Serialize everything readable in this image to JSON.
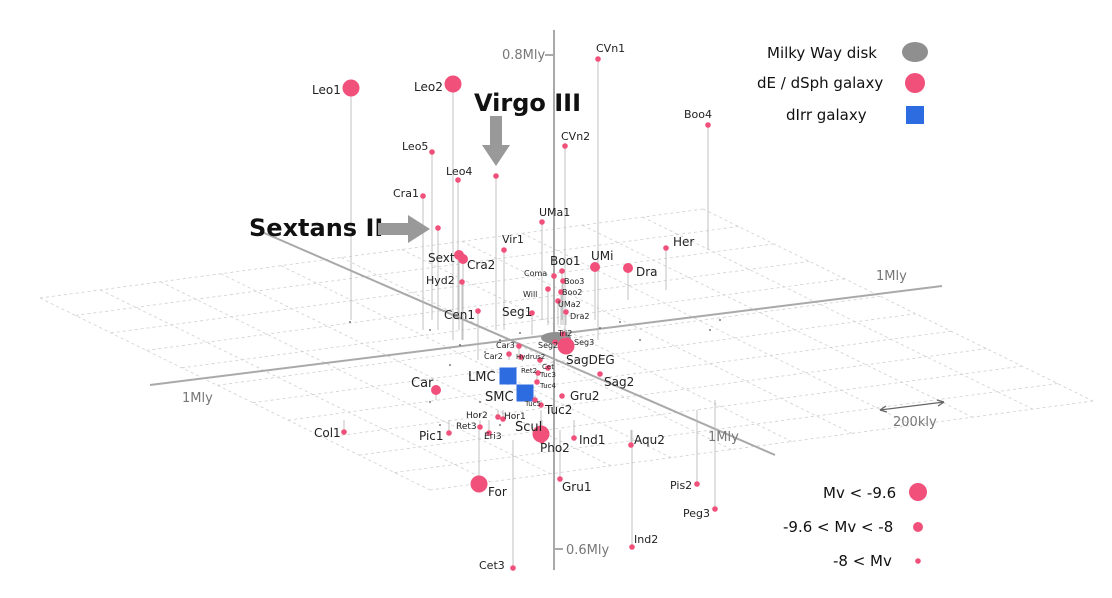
{
  "chart_data": {
    "type": "scatter",
    "title": "",
    "colors": {
      "dsph": "#f0507a",
      "dirr": "#2d6be0",
      "disk": "#8f8f8f",
      "grid": "#cfcfcf",
      "axis": "#a9a9a9",
      "drop": "#b3b3b3",
      "arrow": "#999999"
    },
    "axis_labels": {
      "z_top": "0.8Mly",
      "z_bottom": "0.6Mly",
      "x_right": "1Mly",
      "x_left": "1Mly",
      "y_front": "1Mly",
      "scale_bar": "200kly"
    },
    "legend": {
      "types": [
        {
          "label": "Milky Way disk",
          "marker": "disk"
        },
        {
          "label": "dE / dSph galaxy",
          "marker": "dsph"
        },
        {
          "label": "dIrr galaxy",
          "marker": "dirr"
        }
      ],
      "sizes": [
        {
          "label": "Mv < -9.6",
          "size": "large"
        },
        {
          "label": "-9.6 < Mv < -8",
          "size": "medium"
        },
        {
          "label": "-8 < Mv",
          "size": "small"
        }
      ]
    },
    "callouts": [
      {
        "label": "Virgo III",
        "target": "Vir3"
      },
      {
        "label": "Sextans II",
        "target": "Sex2"
      }
    ],
    "galaxies": [
      {
        "name": "CVn1",
        "size": "small",
        "type": "dsph"
      },
      {
        "name": "Boo4",
        "size": "small",
        "type": "dsph"
      },
      {
        "name": "Leo1",
        "size": "large",
        "type": "dsph"
      },
      {
        "name": "Leo2",
        "size": "large",
        "type": "dsph"
      },
      {
        "name": "CVn2",
        "size": "small",
        "type": "dsph"
      },
      {
        "name": "Leo5",
        "size": "small",
        "type": "dsph"
      },
      {
        "name": "Leo4",
        "size": "small",
        "type": "dsph"
      },
      {
        "name": "Vir3",
        "size": "small",
        "type": "dsph"
      },
      {
        "name": "Cra1",
        "size": "small",
        "type": "dsph"
      },
      {
        "name": "Sex2",
        "size": "small",
        "type": "dsph"
      },
      {
        "name": "UMa1",
        "size": "small",
        "type": "dsph"
      },
      {
        "name": "Vir1",
        "size": "small",
        "type": "dsph"
      },
      {
        "name": "Her",
        "size": "small",
        "type": "dsph"
      },
      {
        "name": "Sext",
        "size": "medium",
        "type": "dsph"
      },
      {
        "name": "Cra2",
        "size": "medium",
        "type": "dsph"
      },
      {
        "name": "Boo1",
        "size": "small",
        "type": "dsph"
      },
      {
        "name": "UMi",
        "size": "medium",
        "type": "dsph"
      },
      {
        "name": "Dra",
        "size": "medium",
        "type": "dsph"
      },
      {
        "name": "Hyd2",
        "size": "small",
        "type": "dsph"
      },
      {
        "name": "Coma",
        "size": "small",
        "type": "dsph"
      },
      {
        "name": "Boo3",
        "size": "small",
        "type": "dsph"
      },
      {
        "name": "Boo2",
        "size": "small",
        "type": "dsph"
      },
      {
        "name": "Will",
        "size": "small",
        "type": "dsph"
      },
      {
        "name": "UMa2",
        "size": "small",
        "type": "dsph"
      },
      {
        "name": "Dra2",
        "size": "small",
        "type": "dsph"
      },
      {
        "name": "Cen1",
        "size": "small",
        "type": "dsph"
      },
      {
        "name": "Seg1",
        "size": "small",
        "type": "dsph"
      },
      {
        "name": "Tri2",
        "size": "small",
        "type": "dsph"
      },
      {
        "name": "Seg3",
        "size": "small",
        "type": "dsph"
      },
      {
        "name": "Seg2",
        "size": "small",
        "type": "dsph"
      },
      {
        "name": "Car3",
        "size": "small",
        "type": "dsph"
      },
      {
        "name": "Car2",
        "size": "small",
        "type": "dsph"
      },
      {
        "name": "Hydrus2",
        "size": "small",
        "type": "dsph"
      },
      {
        "name": "Cet",
        "size": "small",
        "type": "dsph"
      },
      {
        "name": "SagDEG",
        "size": "large",
        "type": "dsph"
      },
      {
        "name": "Ret2",
        "size": "small",
        "type": "dsph"
      },
      {
        "name": "Tuc3",
        "size": "small",
        "type": "dsph"
      },
      {
        "name": "Tuc4",
        "size": "small",
        "type": "dsph"
      },
      {
        "name": "Sag2",
        "size": "small",
        "type": "dsph"
      },
      {
        "name": "Car",
        "size": "medium",
        "type": "dsph"
      },
      {
        "name": "LMC",
        "size": "large",
        "type": "dirr"
      },
      {
        "name": "SMC",
        "size": "large",
        "type": "dirr"
      },
      {
        "name": "Tuc5",
        "size": "small",
        "type": "dsph"
      },
      {
        "name": "Gru2",
        "size": "small",
        "type": "dsph"
      },
      {
        "name": "Tuc2",
        "size": "small",
        "type": "dsph"
      },
      {
        "name": "Hor2",
        "size": "small",
        "type": "dsph"
      },
      {
        "name": "Hor1",
        "size": "small",
        "type": "dsph"
      },
      {
        "name": "Ret3",
        "size": "small",
        "type": "dsph"
      },
      {
        "name": "Eri3",
        "size": "small",
        "type": "dsph"
      },
      {
        "name": "Scul",
        "size": "large",
        "type": "dsph"
      },
      {
        "name": "Col1",
        "size": "small",
        "type": "dsph"
      },
      {
        "name": "Pic1",
        "size": "small",
        "type": "dsph"
      },
      {
        "name": "Ind1",
        "size": "small",
        "type": "dsph"
      },
      {
        "name": "Pho2",
        "size": "small",
        "type": "dsph"
      },
      {
        "name": "Aqu2",
        "size": "small",
        "type": "dsph"
      },
      {
        "name": "For",
        "size": "large",
        "type": "dsph"
      },
      {
        "name": "Gru1",
        "size": "small",
        "type": "dsph"
      },
      {
        "name": "Pis2",
        "size": "small",
        "type": "dsph"
      },
      {
        "name": "Peg3",
        "size": "small",
        "type": "dsph"
      },
      {
        "name": "Ind2",
        "size": "small",
        "type": "dsph"
      },
      {
        "name": "Cet3",
        "size": "small",
        "type": "dsph"
      }
    ]
  }
}
